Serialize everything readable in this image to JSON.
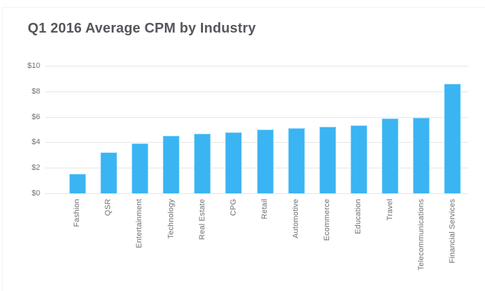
{
  "page": {
    "title": "Q1 2016 Average CPM by Industry"
  },
  "chart_data": {
    "type": "bar",
    "title": "Q1 2016 Average CPM by Industry",
    "xlabel": "",
    "ylabel": "",
    "categories": [
      "Fashion",
      "QSR",
      "Entertainment",
      "Technology",
      "Real Estate",
      "CPG",
      "Retail",
      "Automotive",
      "Ecommerce",
      "Education",
      "Travel",
      "Telecommunications",
      "Financial Services"
    ],
    "values": [
      1.5,
      3.2,
      3.9,
      4.5,
      4.7,
      4.8,
      5.0,
      5.1,
      5.2,
      5.3,
      5.85,
      5.95,
      8.6
    ],
    "ylim": [
      0,
      10
    ],
    "yticks": [
      0,
      2,
      4,
      6,
      8,
      10
    ],
    "ytick_prefix": "$",
    "ytick_labels": [
      "$0",
      "$2",
      "$4",
      "$6",
      "$8",
      "$10"
    ],
    "grid": true,
    "legend": false,
    "bar_color": "#3ab4f2",
    "bar_border_color": "#8ad6f9",
    "grid_color": "#e6e6e6",
    "axis_label_color": "#6b6e73",
    "title_color": "#54575c",
    "background_color": "#ffffff"
  }
}
